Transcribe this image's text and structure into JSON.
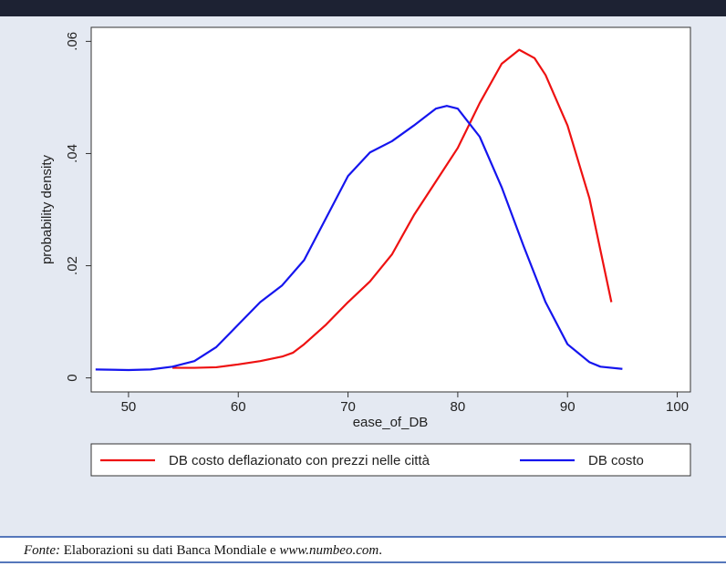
{
  "chart_data": {
    "type": "line",
    "x_label": "ease_of_DB",
    "y_label": "probability density",
    "xlim": [
      46.6,
      101.2
    ],
    "ylim": [
      -0.0025,
      0.0625
    ],
    "xticks": [
      50,
      60,
      70,
      80,
      90,
      100
    ],
    "yticks": [
      0,
      {
        "value": 0.02,
        "label": ".02"
      },
      {
        "value": 0.04,
        "label": ".04"
      },
      {
        "value": 0.06,
        "label": ".06"
      }
    ],
    "series": [
      {
        "name": "DB costo deflazionato con prezzi nelle città",
        "color": "#ee1111",
        "x": [
          54,
          56,
          58,
          60,
          62,
          64,
          65,
          66,
          68,
          70,
          72,
          74,
          76,
          78,
          80,
          82,
          84,
          85.6,
          87,
          88,
          90,
          92,
          94
        ],
        "values": [
          0.0018,
          0.0018,
          0.0019,
          0.0024,
          0.003,
          0.0038,
          0.0045,
          0.006,
          0.0095,
          0.0135,
          0.0172,
          0.022,
          0.029,
          0.035,
          0.041,
          0.049,
          0.056,
          0.0585,
          0.057,
          0.054,
          0.045,
          0.032,
          0.0135
        ]
      },
      {
        "name": "DB costo",
        "color": "#1515ee",
        "x": [
          47,
          50,
          52,
          54,
          56,
          58,
          60,
          62,
          64,
          66,
          68,
          70,
          72,
          74,
          76,
          78,
          79,
          80,
          82,
          84,
          86,
          88,
          90,
          92,
          93,
          95
        ],
        "values": [
          0.0015,
          0.0014,
          0.0015,
          0.002,
          0.003,
          0.0055,
          0.0095,
          0.0135,
          0.0165,
          0.021,
          0.0285,
          0.036,
          0.0402,
          0.0422,
          0.045,
          0.048,
          0.0485,
          0.048,
          0.043,
          0.034,
          0.0235,
          0.0135,
          0.006,
          0.0028,
          0.002,
          0.0016
        ]
      }
    ]
  },
  "source": {
    "label": "Fonte:",
    "text": "Elaborazioni su dati Banca Mondiale e",
    "link": "www.numbeo.com",
    "end": "."
  }
}
